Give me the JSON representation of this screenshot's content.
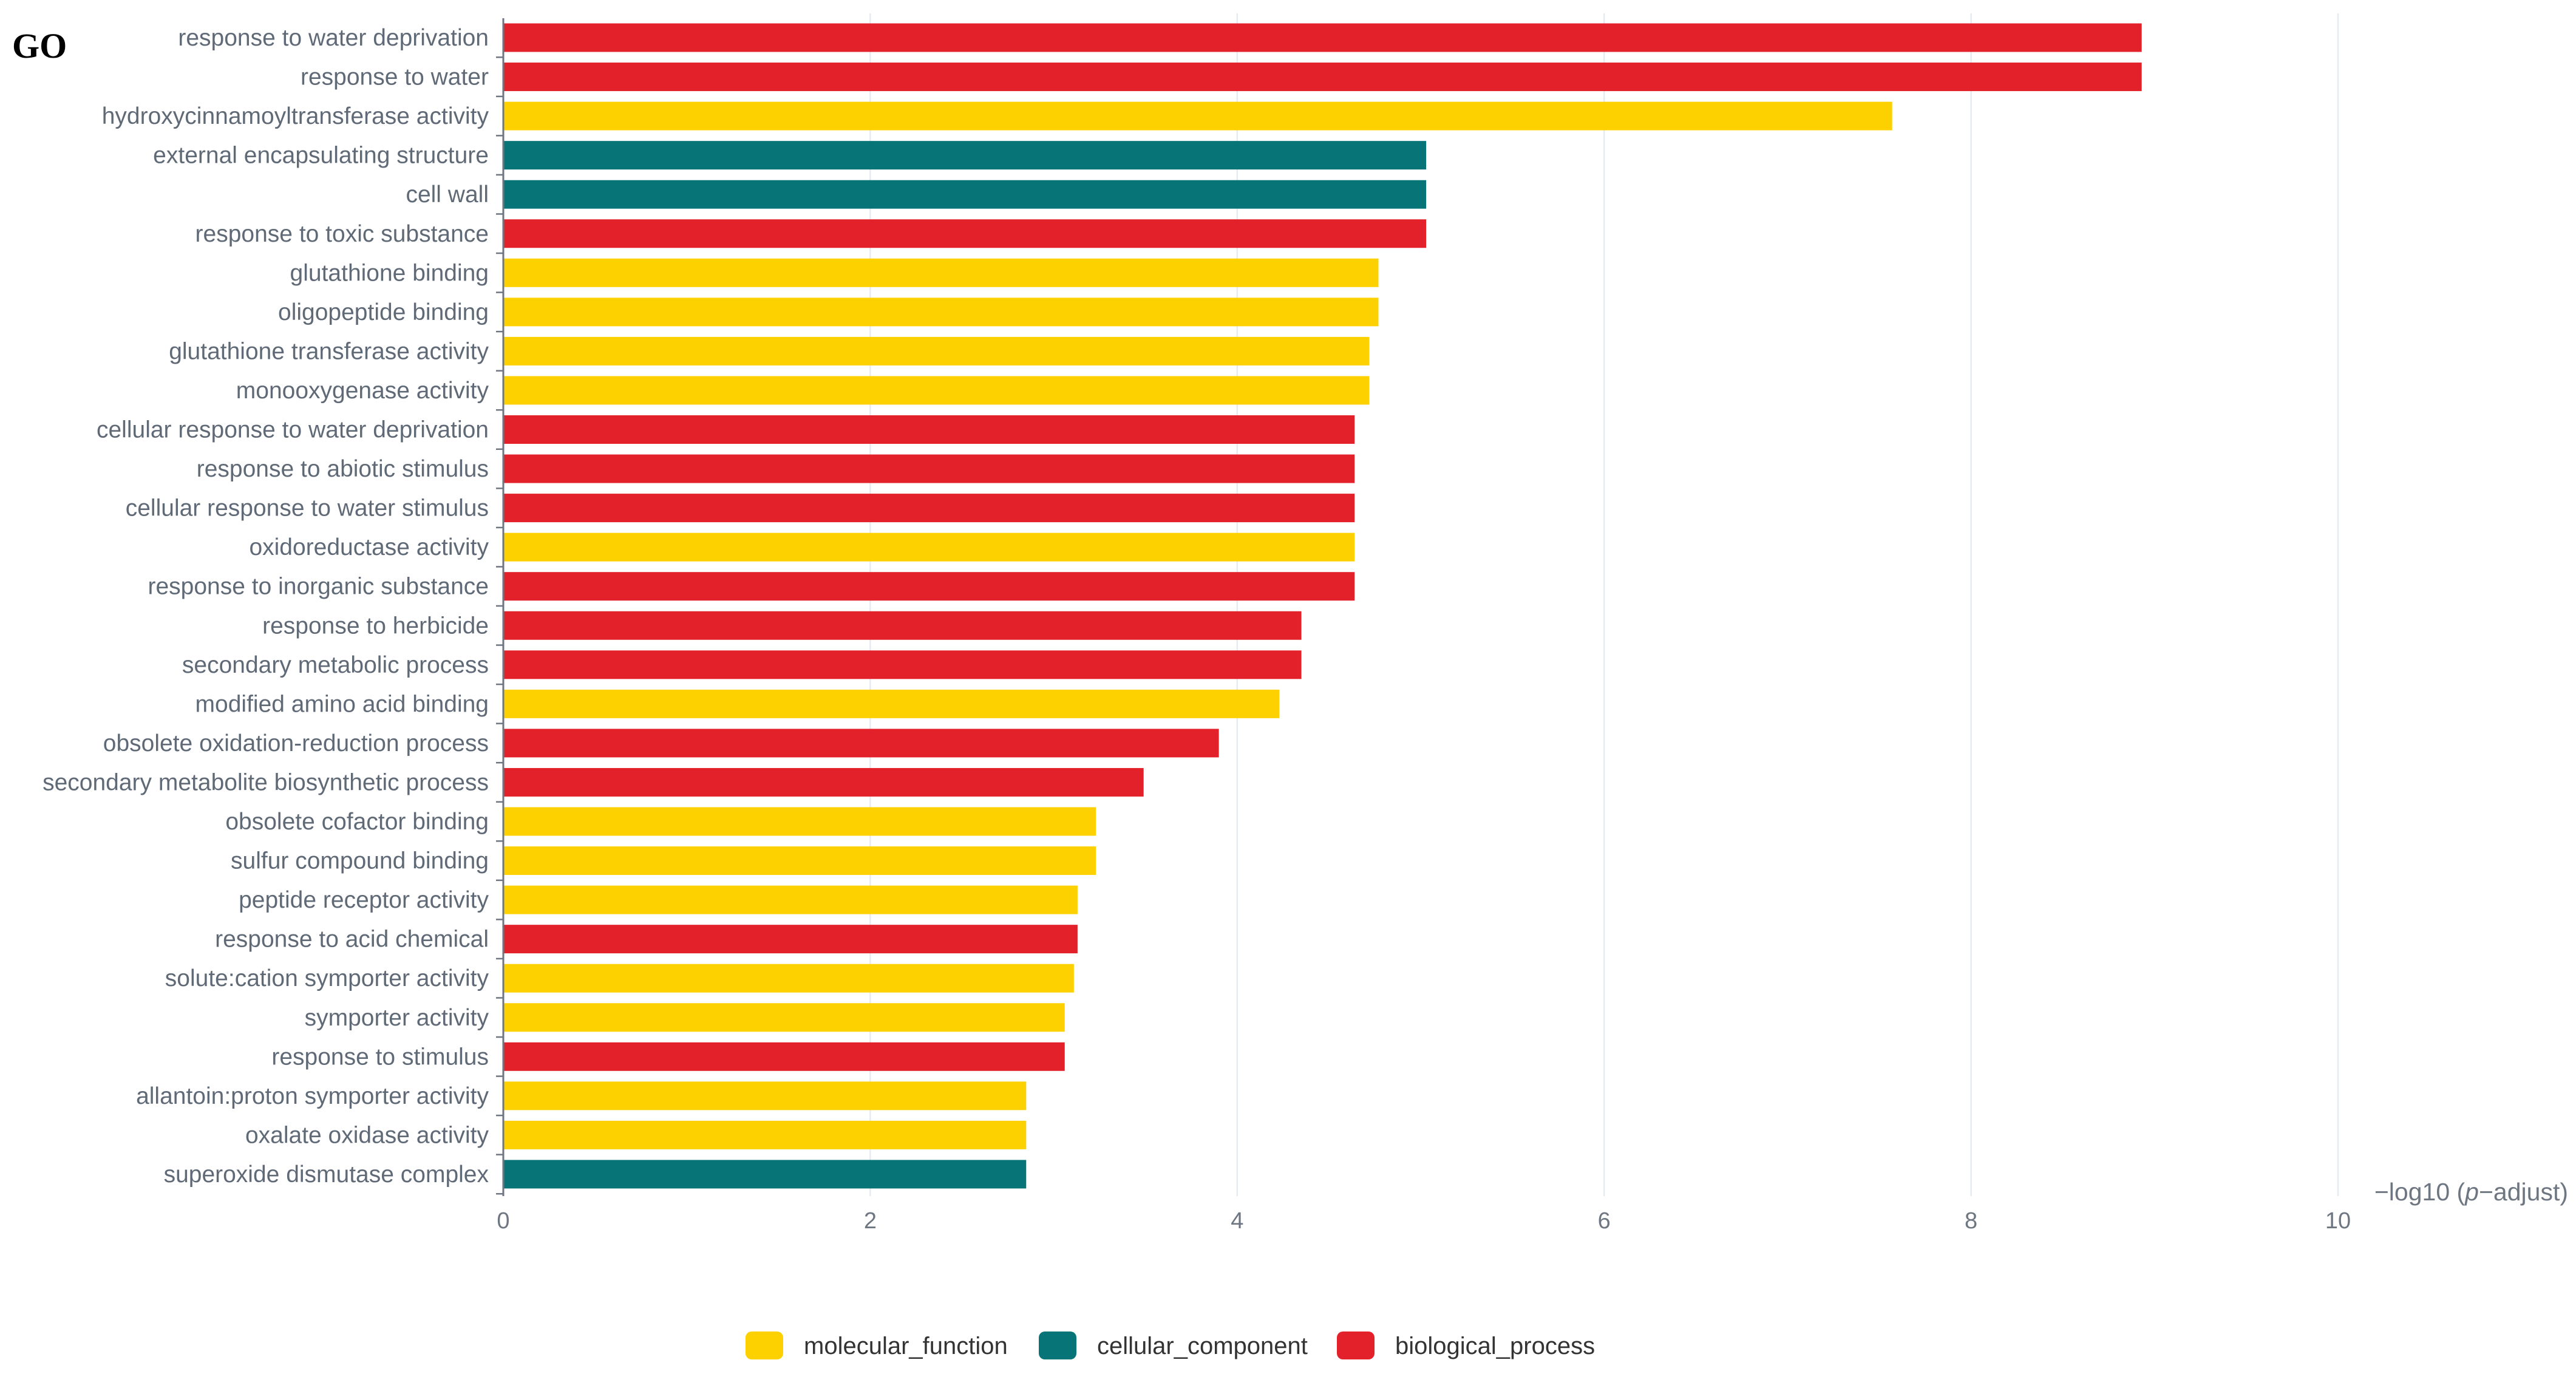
{
  "panel_label": "GO",
  "chart_data": {
    "type": "bar",
    "orientation": "horizontal",
    "title": "",
    "xlabel": "−log10 (p−adjust)",
    "xlabel_parts": {
      "prefix": "−log10 (",
      "italic": "p",
      "suffix": "−adjust)"
    },
    "xlim": [
      0,
      10
    ],
    "xticks": [
      0,
      2,
      4,
      6,
      8,
      10
    ],
    "grid": "vertical",
    "legend_position": "bottom-center",
    "colors": {
      "molecular_function": "#fdd100",
      "cellular_component": "#077578",
      "biological_process": "#e3212a",
      "grid": "#e6ebf1",
      "axis": "#6e7681"
    },
    "legend": [
      {
        "key": "molecular_function",
        "label": "molecular_function"
      },
      {
        "key": "cellular_component",
        "label": "cellular_component"
      },
      {
        "key": "biological_process",
        "label": "biological_process"
      }
    ],
    "bars": [
      {
        "label": "response to water deprivation",
        "value": 8.93,
        "category": "biological_process"
      },
      {
        "label": "response to water",
        "value": 8.93,
        "category": "biological_process"
      },
      {
        "label": "hydroxycinnamoyltransferase activity",
        "value": 7.57,
        "category": "molecular_function"
      },
      {
        "label": "external encapsulating structure",
        "value": 5.03,
        "category": "cellular_component"
      },
      {
        "label": "cell wall",
        "value": 5.03,
        "category": "cellular_component"
      },
      {
        "label": "response to toxic substance",
        "value": 5.03,
        "category": "biological_process"
      },
      {
        "label": "glutathione binding",
        "value": 4.77,
        "category": "molecular_function"
      },
      {
        "label": "oligopeptide binding",
        "value": 4.77,
        "category": "molecular_function"
      },
      {
        "label": "glutathione transferase activity",
        "value": 4.72,
        "category": "molecular_function"
      },
      {
        "label": "monooxygenase activity",
        "value": 4.72,
        "category": "molecular_function"
      },
      {
        "label": "cellular response to water deprivation",
        "value": 4.64,
        "category": "biological_process"
      },
      {
        "label": "response to abiotic stimulus",
        "value": 4.64,
        "category": "biological_process"
      },
      {
        "label": "cellular response to water stimulus",
        "value": 4.64,
        "category": "biological_process"
      },
      {
        "label": "oxidoreductase activity",
        "value": 4.64,
        "category": "molecular_function"
      },
      {
        "label": "response to inorganic substance",
        "value": 4.64,
        "category": "biological_process"
      },
      {
        "label": "response to herbicide",
        "value": 4.35,
        "category": "biological_process"
      },
      {
        "label": "secondary metabolic process",
        "value": 4.35,
        "category": "biological_process"
      },
      {
        "label": "modified amino acid binding",
        "value": 4.23,
        "category": "molecular_function"
      },
      {
        "label": "obsolete oxidation-reduction process",
        "value": 3.9,
        "category": "biological_process"
      },
      {
        "label": "secondary metabolite biosynthetic process",
        "value": 3.49,
        "category": "biological_process"
      },
      {
        "label": "obsolete cofactor binding",
        "value": 3.23,
        "category": "molecular_function"
      },
      {
        "label": "sulfur compound binding",
        "value": 3.23,
        "category": "molecular_function"
      },
      {
        "label": "peptide receptor activity",
        "value": 3.13,
        "category": "molecular_function"
      },
      {
        "label": "response to acid chemical",
        "value": 3.13,
        "category": "biological_process"
      },
      {
        "label": "solute:cation symporter activity",
        "value": 3.11,
        "category": "molecular_function"
      },
      {
        "label": "symporter activity",
        "value": 3.06,
        "category": "molecular_function"
      },
      {
        "label": "response to stimulus",
        "value": 3.06,
        "category": "biological_process"
      },
      {
        "label": "allantoin:proton symporter activity",
        "value": 2.85,
        "category": "molecular_function"
      },
      {
        "label": "oxalate oxidase activity",
        "value": 2.85,
        "category": "molecular_function"
      },
      {
        "label": "superoxide dismutase complex",
        "value": 2.85,
        "category": "cellular_component"
      }
    ]
  }
}
